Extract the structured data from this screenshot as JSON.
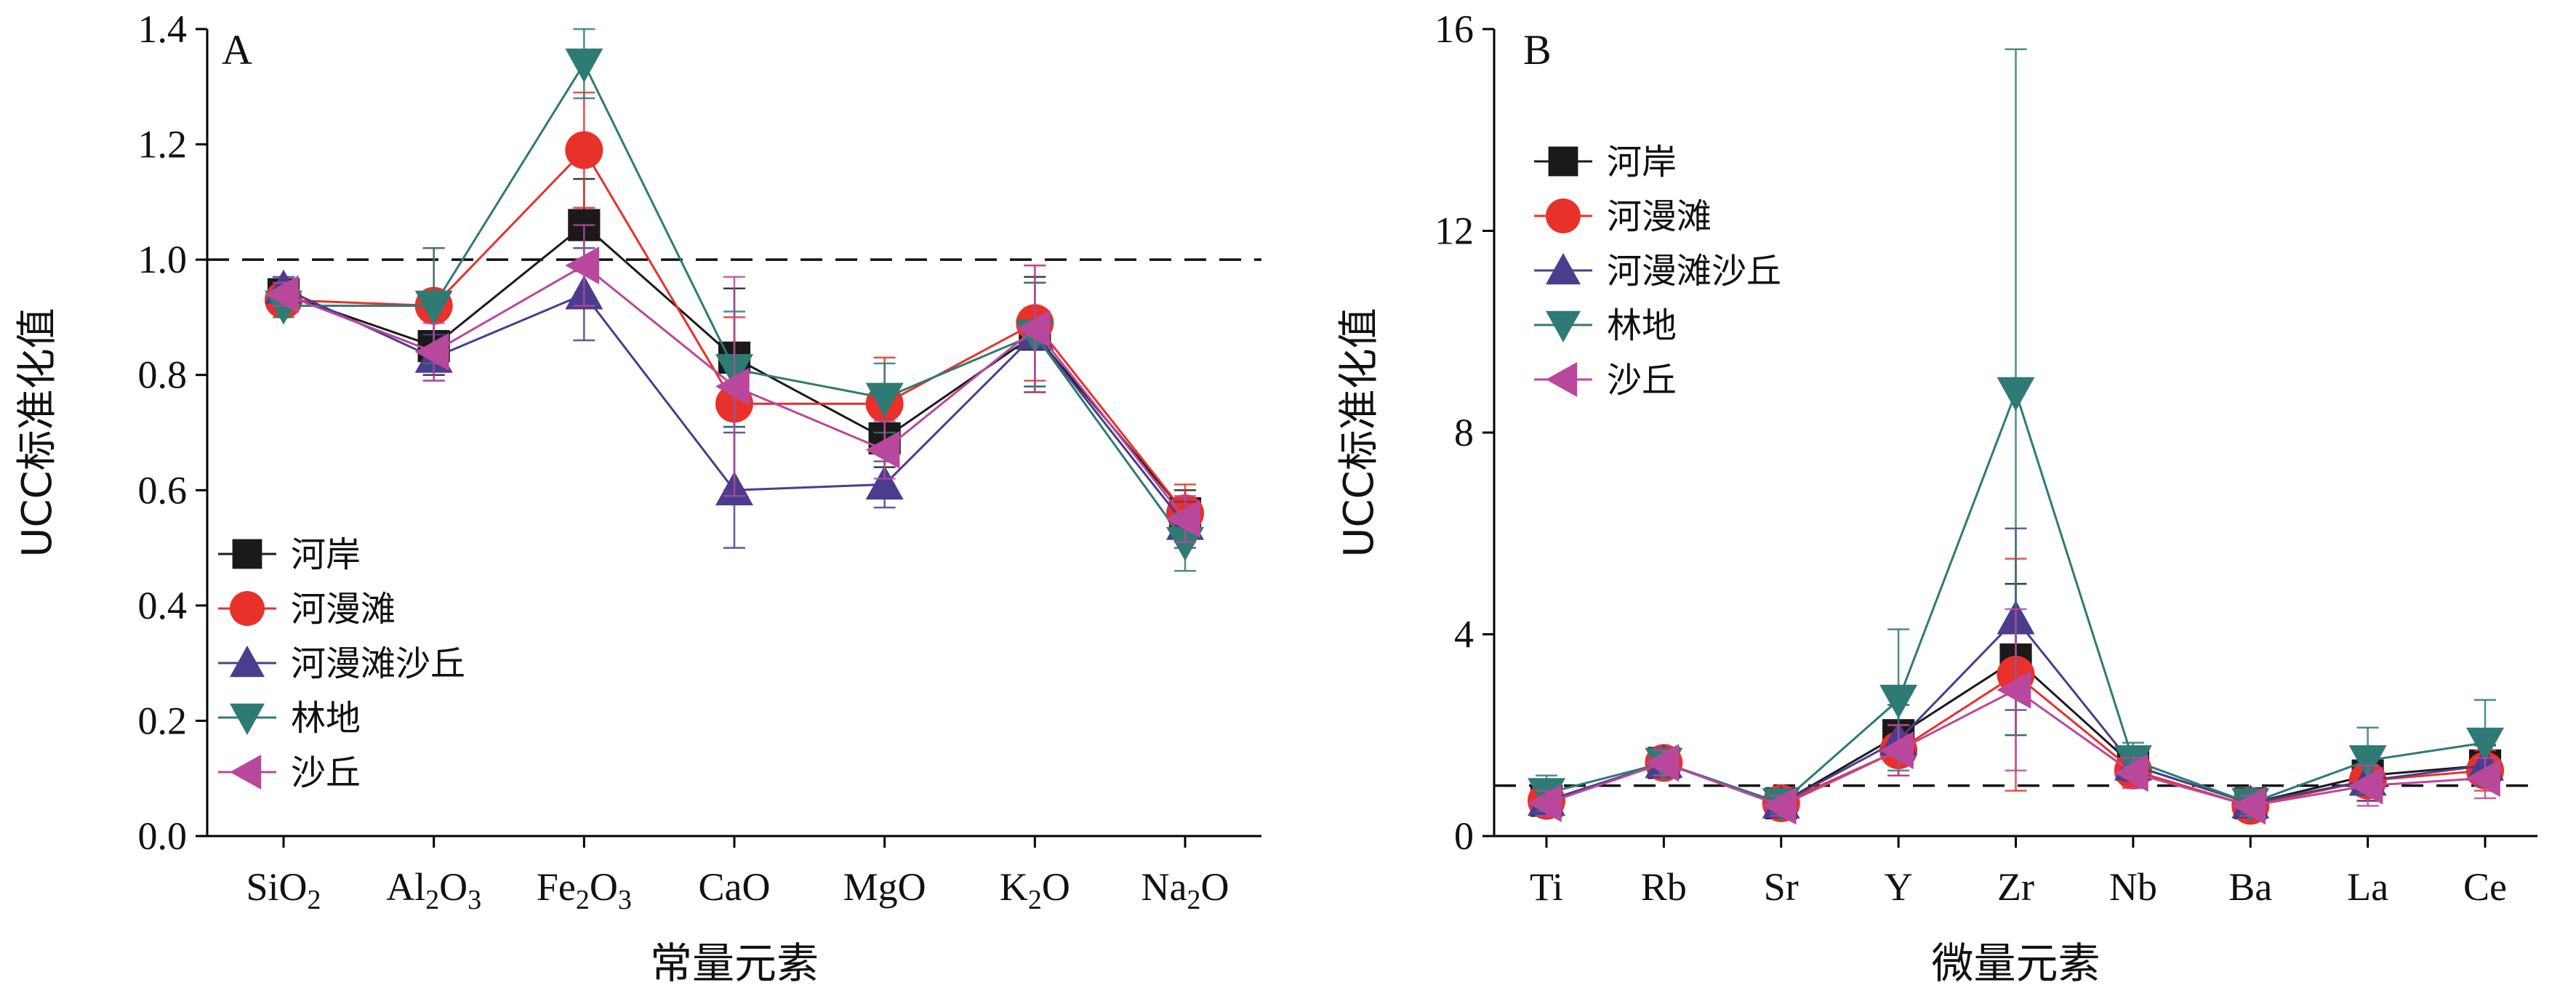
{
  "chart_data": [
    {
      "type": "line",
      "panel_label": "A",
      "xlabel": "常量元素",
      "ylabel": "UCC标准化值",
      "categories": [
        "SiO2",
        "Al2O3",
        "Fe2O3",
        "CaO",
        "MgO",
        "K2O",
        "Na2O"
      ],
      "category_labels": [
        [
          {
            "t": "SiO",
            "sub": false
          },
          {
            "t": "2",
            "sub": true
          }
        ],
        [
          {
            "t": "Al",
            "sub": false
          },
          {
            "t": "2",
            "sub": true
          },
          {
            "t": "O",
            "sub": false
          },
          {
            "t": "3",
            "sub": true
          }
        ],
        [
          {
            "t": "Fe",
            "sub": false
          },
          {
            "t": "2",
            "sub": true
          },
          {
            "t": "O",
            "sub": false
          },
          {
            "t": "3",
            "sub": true
          }
        ],
        [
          {
            "t": "CaO",
            "sub": false
          }
        ],
        [
          {
            "t": "MgO",
            "sub": false
          }
        ],
        [
          {
            "t": "K",
            "sub": false
          },
          {
            "t": "2",
            "sub": true
          },
          {
            "t": "O",
            "sub": false
          }
        ],
        [
          {
            "t": "Na",
            "sub": false
          },
          {
            "t": "2",
            "sub": true
          },
          {
            "t": "O",
            "sub": false
          }
        ]
      ],
      "ylim": [
        0,
        1.4
      ],
      "yticks": [
        "0.0",
        "0.2",
        "0.4",
        "0.6",
        "0.8",
        "1.0",
        "1.2",
        "1.4"
      ],
      "reference_line": 1.0,
      "grid": false,
      "legend_position": "lower-left",
      "series": [
        {
          "name": "河岸",
          "marker": "square",
          "color": "#1a1a1a",
          "values": [
            0.94,
            0.85,
            1.06,
            0.83,
            0.69,
            0.87,
            0.56
          ],
          "errors": [
            0.02,
            0.05,
            0.08,
            0.12,
            0.05,
            0.1,
            0.04
          ]
        },
        {
          "name": "河漫滩",
          "marker": "circle",
          "color": "#e8312b",
          "values": [
            0.93,
            0.92,
            1.19,
            0.75,
            0.75,
            0.89,
            0.56
          ],
          "errors": [
            0.02,
            0.1,
            0.1,
            0.15,
            0.08,
            0.1,
            0.05
          ]
        },
        {
          "name": "河漫滩沙丘",
          "marker": "triangle-up",
          "color": "#4b3c8e",
          "values": [
            0.95,
            0.83,
            0.94,
            0.6,
            0.61,
            0.87,
            0.54
          ],
          "errors": [
            0.02,
            0.04,
            0.08,
            0.1,
            0.04,
            0.09,
            0.04
          ]
        },
        {
          "name": "林地",
          "marker": "triangle-down",
          "color": "#2e7a75",
          "values": [
            0.92,
            0.92,
            1.34,
            0.81,
            0.76,
            0.87,
            0.51
          ],
          "errors": [
            0.02,
            0.1,
            0.06,
            0.1,
            0.06,
            0.09,
            0.05
          ]
        },
        {
          "name": "沙丘",
          "marker": "triangle-left",
          "color": "#b9489c",
          "values": [
            0.94,
            0.84,
            0.99,
            0.78,
            0.67,
            0.88,
            0.55
          ],
          "errors": [
            0.02,
            0.05,
            0.07,
            0.19,
            0.05,
            0.11,
            0.04
          ]
        }
      ]
    },
    {
      "type": "line",
      "panel_label": "B",
      "xlabel": "微量元素",
      "ylabel": "UCC标准化值",
      "categories": [
        "Ti",
        "Rb",
        "Sr",
        "Y",
        "Zr",
        "Nb",
        "Ba",
        "La",
        "Ce"
      ],
      "category_labels": [
        [
          {
            "t": "Ti",
            "sub": false
          }
        ],
        [
          {
            "t": "Rb",
            "sub": false
          }
        ],
        [
          {
            "t": "Sr",
            "sub": false
          }
        ],
        [
          {
            "t": "Y",
            "sub": false
          }
        ],
        [
          {
            "t": "Zr",
            "sub": false
          }
        ],
        [
          {
            "t": "Nb",
            "sub": false
          }
        ],
        [
          {
            "t": "Ba",
            "sub": false
          }
        ],
        [
          {
            "t": "La",
            "sub": false
          }
        ],
        [
          {
            "t": "Ce",
            "sub": false
          }
        ]
      ],
      "ylim": [
        0,
        16
      ],
      "yticks": [
        "0",
        "4",
        "8",
        "12",
        "16"
      ],
      "reference_line": 1.0,
      "grid": false,
      "legend_position": "upper-left",
      "series": [
        {
          "name": "河岸",
          "marker": "square",
          "color": "#1a1a1a",
          "values": [
            0.7,
            1.45,
            0.65,
            2.0,
            3.5,
            1.4,
            0.65,
            1.2,
            1.4
          ],
          "errors": [
            0.25,
            0.25,
            0.2,
            0.8,
            1.5,
            0.3,
            0.2,
            0.4,
            0.4
          ]
        },
        {
          "name": "河漫滩",
          "marker": "circle",
          "color": "#e8312b",
          "values": [
            0.7,
            1.45,
            0.65,
            1.7,
            3.2,
            1.3,
            0.6,
            1.1,
            1.3
          ],
          "errors": [
            0.25,
            0.25,
            0.2,
            0.5,
            2.3,
            0.3,
            0.2,
            0.4,
            0.4
          ]
        },
        {
          "name": "河漫滩沙丘",
          "marker": "triangle-up",
          "color": "#4b3c8e",
          "values": [
            0.7,
            1.45,
            0.65,
            1.9,
            4.3,
            1.4,
            0.65,
            1.1,
            1.4
          ],
          "errors": [
            0.25,
            0.25,
            0.2,
            0.7,
            1.8,
            0.3,
            0.2,
            0.4,
            0.4
          ]
        },
        {
          "name": "林地",
          "marker": "triangle-down",
          "color": "#2e7a75",
          "values": [
            0.85,
            1.45,
            0.65,
            2.7,
            8.8,
            1.5,
            0.65,
            1.5,
            1.85
          ],
          "errors": [
            0.35,
            0.25,
            0.2,
            1.4,
            6.8,
            0.35,
            0.2,
            0.65,
            0.85
          ]
        },
        {
          "name": "沙丘",
          "marker": "triangle-left",
          "color": "#b9489c",
          "values": [
            0.65,
            1.45,
            0.6,
            1.7,
            2.9,
            1.25,
            0.6,
            1.0,
            1.15
          ],
          "errors": [
            0.25,
            0.25,
            0.2,
            0.5,
            1.6,
            0.3,
            0.2,
            0.4,
            0.4
          ]
        }
      ]
    }
  ]
}
